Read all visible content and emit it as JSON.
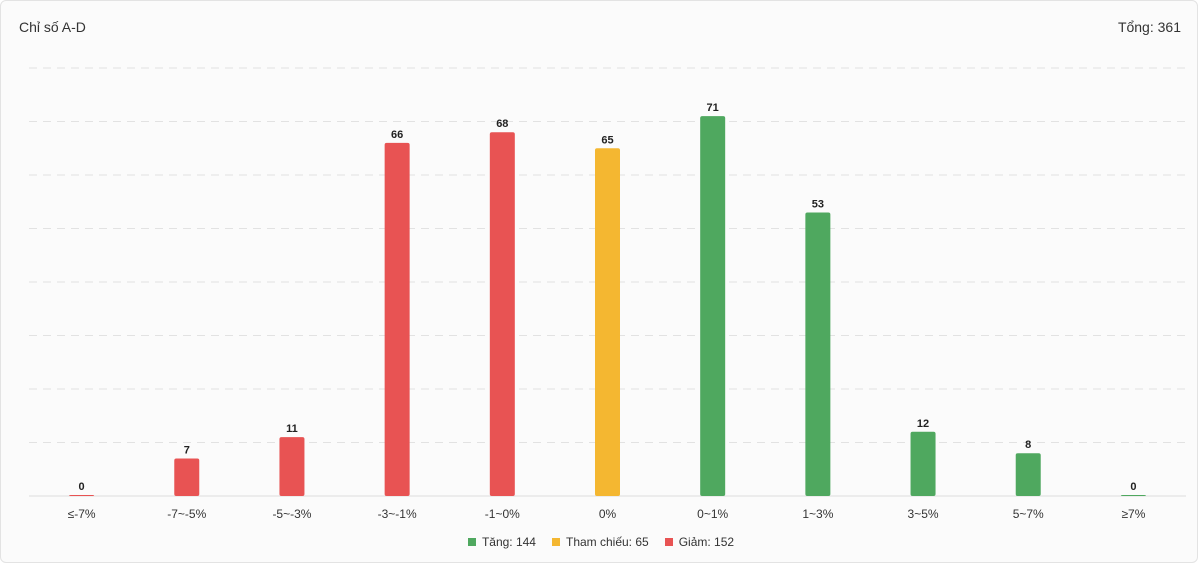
{
  "header": {
    "title": "Chỉ số A-D",
    "total": "Tổng: 361"
  },
  "chart_data": {
    "type": "bar",
    "categories": [
      "≤-7%",
      "-7~-5%",
      "-5~-3%",
      "-3~-1%",
      "-1~0%",
      "0%",
      "0~1%",
      "1~3%",
      "3~5%",
      "5~7%",
      "≥7%"
    ],
    "values": [
      0,
      7,
      11,
      66,
      68,
      65,
      71,
      53,
      12,
      8,
      0
    ],
    "bar_groups": [
      "giam",
      "giam",
      "giam",
      "giam",
      "giam",
      "tham_chieu",
      "tang",
      "tang",
      "tang",
      "tang",
      "tang"
    ],
    "colors": {
      "giam": "#e85353",
      "tham_chieu": "#f4b731",
      "tang": "#4fa85f"
    },
    "ylim": [
      0,
      80
    ],
    "grid": true,
    "legend": [
      {
        "key": "tang",
        "label": "Tăng: 144"
      },
      {
        "key": "tham_chieu",
        "label": "Tham chiếu: 65"
      },
      {
        "key": "giam",
        "label": "Giảm: 152"
      }
    ],
    "legend_position": "bottom"
  }
}
